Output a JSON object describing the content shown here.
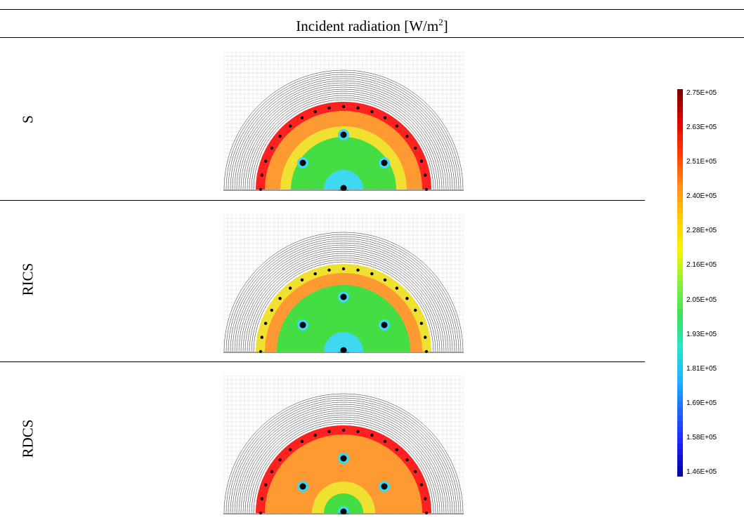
{
  "header": {
    "title": "Incident radiation [W/m",
    "superscript": "2",
    "title_end": "]"
  },
  "rows": [
    {
      "label": "S"
    },
    {
      "label": "RICS"
    },
    {
      "label": "RDCS"
    }
  ],
  "colorbar": {
    "ticks": [
      "2.75E+05",
      "2.63E+05",
      "2.51E+05",
      "2.40E+05",
      "2.28E+05",
      "2.16E+05",
      "2.05E+05",
      "1.93E+05",
      "1.81E+05",
      "1.69E+05",
      "1.58E+05",
      "1.46E+05"
    ],
    "gradient": [
      "#7a0000",
      "#e00000",
      "#ff3c00",
      "#ff8c1a",
      "#ffcc00",
      "#f5f500",
      "#8cf03c",
      "#3ce05a",
      "#28e6c8",
      "#1eb4ff",
      "#1e64ff",
      "#1e1eff",
      "#00009a"
    ]
  },
  "colors": {
    "ring_fill": "#ff2020",
    "inner_orange": "#ff9a33",
    "yellow": "#f0e030",
    "green": "#44dd44",
    "cyan": "#40d8f0",
    "blue": "#1e64ff",
    "hole": "#000000"
  }
}
